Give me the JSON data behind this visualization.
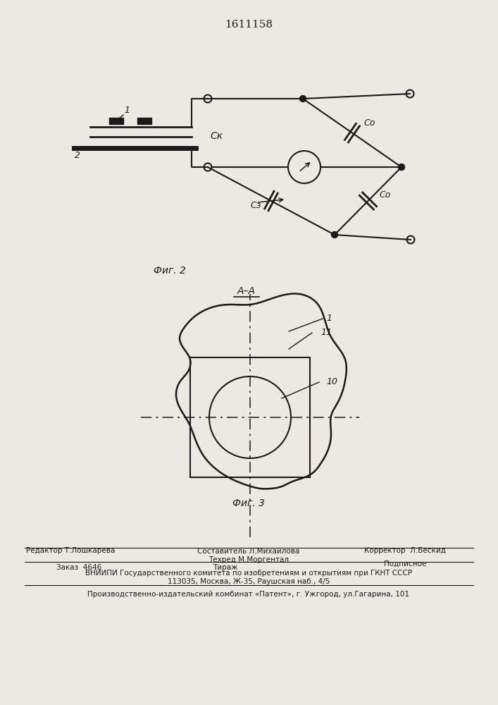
{
  "title": "1611158",
  "fig2_label": "Фиг. 2",
  "fig3_label": "Фиг. 3",
  "label_AA": "A–A",
  "label_CK": "Cк",
  "label_C0_1": "Cо",
  "label_C0_2": "Cо",
  "label_CZ": "Cз",
  "label_1_circ": "1",
  "label_2": "2",
  "label_1_fig3": "1",
  "label_11": "11",
  "label_10": "10",
  "bg_color": "#ece9e3",
  "line_color": "#1a1a1a",
  "footer_editor": "Редактор Т.Лошкарева",
  "footer_sostavitel": "Составитель Л.Михайлова",
  "footer_tehred": "Техред М.Моргентал",
  "footer_korrektor": "Корректор  Л.Бескид",
  "footer_zakaz": "Заказ  4646",
  "footer_tirazh": "Тираж",
  "footer_podpisnoe": "Подписное",
  "footer_vniipи": "ВНИИПИ Государственного комитета по изобретениям и открытиям при ГКНТ СССР",
  "footer_addr": "113035, Москва, Ж-35, Раушская наб., 4/5",
  "footer_patent": "Производственно-издательский комбинат «Патент», г. Ужгород, ул.Гагарина, 101"
}
